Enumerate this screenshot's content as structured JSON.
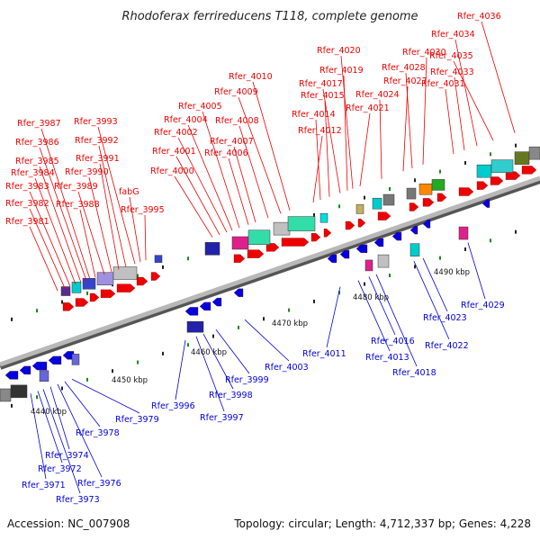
{
  "title": "Rhodoferax ferrireducens T118, complete genome",
  "footer": {
    "accession": "Accession: NC_007908",
    "info": "Topology: circular; Length: 4,712,337 bp; Genes: 4,228"
  },
  "colors": {
    "forward": "#ee0000",
    "reverse": "#0000dd",
    "backbone": "#888888"
  },
  "kbp_labels": [
    "4440 kbp",
    "4450 kbp",
    "4460 kbp",
    "4470 kbp",
    "4480 kbp",
    "4490 kbp"
  ],
  "forward_labels": [
    "Rfer_3981",
    "Rfer_3982",
    "Rfer_3983",
    "Rfer_3984",
    "Rfer_3985",
    "Rfer_3986",
    "Rfer_3987",
    "Rfer_3988",
    "Rfer_3989",
    "Rfer_3990",
    "Rfer_3991",
    "Rfer_3992",
    "Rfer_3993",
    "fabG",
    "Rfer_3995",
    "Rfer_4000",
    "Rfer_4001",
    "Rfer_4002",
    "Rfer_4004",
    "Rfer_4005",
    "Rfer_4006",
    "Rfer_4007",
    "Rfer_4008",
    "Rfer_4009",
    "Rfer_4010",
    "Rfer_4012",
    "Rfer_4014",
    "Rfer_4015",
    "Rfer_4017",
    "Rfer_4019",
    "Rfer_4020",
    "Rfer_4021",
    "Rfer_4024",
    "Rfer_4027",
    "Rfer_4028",
    "Rfer_4030",
    "Rfer_4031",
    "Rfer_4033",
    "Rfer_4034",
    "Rfer_4035",
    "Rfer_4036"
  ],
  "reverse_labels": [
    "Rfer_3971",
    "Rfer_3972",
    "Rfer_3973",
    "Rfer_3974",
    "Rfer_3976",
    "Rfer_3978",
    "Rfer_3979",
    "Rfer_3996",
    "Rfer_3997",
    "Rfer_3998",
    "Rfer_3999",
    "Rfer_4003",
    "Rfer_4011",
    "Rfer_4013",
    "Rfer_4016",
    "Rfer_4018",
    "Rfer_4022",
    "Rfer_4023",
    "Rfer_4029"
  ]
}
